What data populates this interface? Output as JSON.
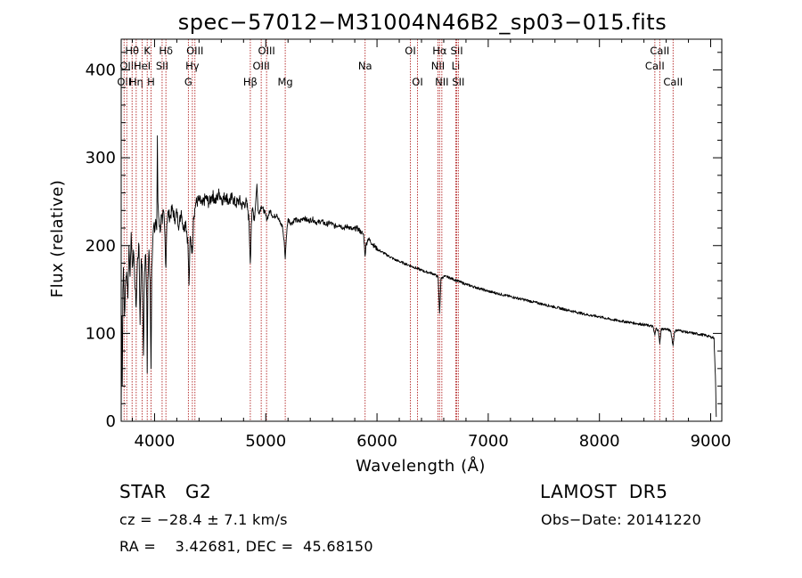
{
  "chart_data": {
    "type": "line",
    "title": "spec−57012−M31004N46B2_sp03−015.fits",
    "xlabel": "Wavelength (Å)",
    "ylabel": "Flux (relative)",
    "xlim": [
      3700,
      9100
    ],
    "ylim": [
      0,
      435
    ],
    "xticks": [
      4000,
      5000,
      6000,
      7000,
      8000,
      9000
    ],
    "yticks": [
      0,
      100,
      200,
      300,
      400
    ],
    "grid": false,
    "series": [
      {
        "points": [
          [
            3700,
            5
          ],
          [
            3705,
            120
          ],
          [
            3710,
            40
          ],
          [
            3715,
            150
          ],
          [
            3720,
            175
          ],
          [
            3730,
            120
          ],
          [
            3740,
            160
          ],
          [
            3750,
            170
          ],
          [
            3760,
            140
          ],
          [
            3770,
            200
          ],
          [
            3780,
            165
          ],
          [
            3790,
            215
          ],
          [
            3800,
            175
          ],
          [
            3810,
            195
          ],
          [
            3820,
            165
          ],
          [
            3835,
            130
          ],
          [
            3845,
            180
          ],
          [
            3860,
            200
          ],
          [
            3870,
            110
          ],
          [
            3880,
            185
          ],
          [
            3890,
            170
          ],
          [
            3900,
            75
          ],
          [
            3910,
            170
          ],
          [
            3920,
            190
          ],
          [
            3930,
            140
          ],
          [
            3934,
            55
          ],
          [
            3940,
            160
          ],
          [
            3950,
            195
          ],
          [
            3960,
            160
          ],
          [
            3968,
            60
          ],
          [
            3975,
            175
          ],
          [
            3985,
            210
          ],
          [
            3995,
            225
          ],
          [
            4000,
            215
          ],
          [
            4010,
            230
          ],
          [
            4020,
            218
          ],
          [
            4025,
            325
          ],
          [
            4030,
            250
          ],
          [
            4040,
            230
          ],
          [
            4050,
            215
          ],
          [
            4060,
            235
          ],
          [
            4070,
            225
          ],
          [
            4080,
            240
          ],
          [
            4090,
            220
          ],
          [
            4102,
            175
          ],
          [
            4110,
            225
          ],
          [
            4120,
            238
          ],
          [
            4140,
            232
          ],
          [
            4160,
            243
          ],
          [
            4180,
            230
          ],
          [
            4200,
            238
          ],
          [
            4220,
            222
          ],
          [
            4240,
            240
          ],
          [
            4260,
            218
          ],
          [
            4280,
            228
          ],
          [
            4300,
            202
          ],
          [
            4310,
            155
          ],
          [
            4320,
            210
          ],
          [
            4340,
            192
          ],
          [
            4350,
            232
          ],
          [
            4370,
            248
          ],
          [
            4400,
            252
          ],
          [
            4430,
            246
          ],
          [
            4460,
            255
          ],
          [
            4490,
            248
          ],
          [
            4520,
            258
          ],
          [
            4550,
            250
          ],
          [
            4580,
            260
          ],
          [
            4610,
            252
          ],
          [
            4640,
            257
          ],
          [
            4670,
            250
          ],
          [
            4700,
            255
          ],
          [
            4730,
            247
          ],
          [
            4760,
            252
          ],
          [
            4790,
            245
          ],
          [
            4820,
            250
          ],
          [
            4840,
            240
          ],
          [
            4850,
            225
          ],
          [
            4861,
            180
          ],
          [
            4870,
            225
          ],
          [
            4880,
            240
          ],
          [
            4900,
            232
          ],
          [
            4920,
            270
          ],
          [
            4930,
            240
          ],
          [
            4940,
            238
          ],
          [
            4960,
            245
          ],
          [
            4990,
            238
          ],
          [
            5010,
            230
          ],
          [
            5040,
            240
          ],
          [
            5070,
            232
          ],
          [
            5100,
            236
          ],
          [
            5130,
            225
          ],
          [
            5150,
            222
          ],
          [
            5168,
            200
          ],
          [
            5175,
            185
          ],
          [
            5185,
            210
          ],
          [
            5200,
            230
          ],
          [
            5230,
            225
          ],
          [
            5260,
            230
          ],
          [
            5300,
            227
          ],
          [
            5340,
            232
          ],
          [
            5380,
            228
          ],
          [
            5420,
            230
          ],
          [
            5460,
            226
          ],
          [
            5500,
            228
          ],
          [
            5540,
            224
          ],
          [
            5580,
            226
          ],
          [
            5620,
            222
          ],
          [
            5660,
            224
          ],
          [
            5700,
            220
          ],
          [
            5740,
            222
          ],
          [
            5780,
            218
          ],
          [
            5820,
            220
          ],
          [
            5860,
            215
          ],
          [
            5880,
            212
          ],
          [
            5893,
            188
          ],
          [
            5900,
            200
          ],
          [
            5920,
            208
          ],
          [
            5960,
            202
          ],
          [
            6000,
            196
          ],
          [
            6040,
            193
          ],
          [
            6080,
            190
          ],
          [
            6120,
            187
          ],
          [
            6160,
            184
          ],
          [
            6200,
            182
          ],
          [
            6240,
            180
          ],
          [
            6280,
            178
          ],
          [
            6320,
            176
          ],
          [
            6360,
            174
          ],
          [
            6400,
            172
          ],
          [
            6440,
            170
          ],
          [
            6480,
            169
          ],
          [
            6520,
            167
          ],
          [
            6550,
            164
          ],
          [
            6563,
            123
          ],
          [
            6575,
            162
          ],
          [
            6600,
            165
          ],
          [
            6640,
            164
          ],
          [
            6680,
            162
          ],
          [
            6720,
            160
          ],
          [
            6760,
            158
          ],
          [
            6800,
            156
          ],
          [
            6900,
            152
          ],
          [
            7000,
            148
          ],
          [
            7100,
            145
          ],
          [
            7200,
            142
          ],
          [
            7300,
            139
          ],
          [
            7400,
            136
          ],
          [
            7500,
            133
          ],
          [
            7600,
            130
          ],
          [
            7700,
            127
          ],
          [
            7800,
            124
          ],
          [
            7900,
            121
          ],
          [
            8000,
            119
          ],
          [
            8100,
            116
          ],
          [
            8200,
            114
          ],
          [
            8300,
            112
          ],
          [
            8400,
            110
          ],
          [
            8480,
            108
          ],
          [
            8498,
            98
          ],
          [
            8510,
            106
          ],
          [
            8530,
            103
          ],
          [
            8542,
            88
          ],
          [
            8555,
            105
          ],
          [
            8600,
            105
          ],
          [
            8640,
            103
          ],
          [
            8662,
            86
          ],
          [
            8675,
            102
          ],
          [
            8700,
            104
          ],
          [
            8800,
            101
          ],
          [
            8900,
            99
          ],
          [
            8950,
            98
          ],
          [
            9000,
            96
          ],
          [
            9030,
            95
          ],
          [
            9045,
            40
          ],
          [
            9050,
            5
          ]
        ]
      }
    ],
    "lines": [
      {
        "x": 3726,
        "label": "OII",
        "row": 3
      },
      {
        "x": 3750,
        "label": "OII",
        "row": 2
      },
      {
        "x": 3798,
        "label": "Hθ",
        "row": 1
      },
      {
        "x": 3835,
        "label": "Hη",
        "row": 3
      },
      {
        "x": 3889,
        "label": "HeI",
        "row": 2
      },
      {
        "x": 3934,
        "label": "K",
        "row": 1
      },
      {
        "x": 3968,
        "label": "H",
        "row": 3
      },
      {
        "x": 4068,
        "label": "SII",
        "row": 2
      },
      {
        "x": 4102,
        "label": "Hδ",
        "row": 1
      },
      {
        "x": 4304,
        "label": "G",
        "row": 3
      },
      {
        "x": 4340,
        "label": "Hγ",
        "row": 2
      },
      {
        "x": 4363,
        "label": "OIII",
        "row": 1
      },
      {
        "x": 4861,
        "label": "Hβ",
        "row": 3
      },
      {
        "x": 4959,
        "label": "OIII",
        "row": 2
      },
      {
        "x": 5007,
        "label": "OIII",
        "row": 1
      },
      {
        "x": 5175,
        "label": "Mg",
        "row": 3
      },
      {
        "x": 5893,
        "label": "Na",
        "row": 2
      },
      {
        "x": 6300,
        "label": "OI",
        "row": 1
      },
      {
        "x": 6364,
        "label": "OI",
        "row": 3
      },
      {
        "x": 6548,
        "label": "NII",
        "row": 2
      },
      {
        "x": 6563,
        "label": "Hα",
        "row": 1
      },
      {
        "x": 6583,
        "label": "NII",
        "row": 3
      },
      {
        "x": 6708,
        "label": "Li",
        "row": 2
      },
      {
        "x": 6717,
        "label": "SII",
        "row": 1
      },
      {
        "x": 6731,
        "label": "SII",
        "row": 3
      },
      {
        "x": 8498,
        "label": "CaII",
        "row": 2
      },
      {
        "x": 8542,
        "label": "CaII",
        "row": 1
      },
      {
        "x": 8662,
        "label": "CaII",
        "row": 3
      }
    ]
  },
  "info": {
    "object_type": "STAR",
    "subclass": "G2",
    "survey": "LAMOST  DR5",
    "redshift": "cz = −28.4 ± 7.1 km/s",
    "obs_date": "Obs−Date: 20141220",
    "coords": "RA =    3.42681, DEC =  45.68150"
  },
  "colors": {
    "axis": "#000000",
    "spectrum": "#000000",
    "line_marker": "#b22222"
  }
}
